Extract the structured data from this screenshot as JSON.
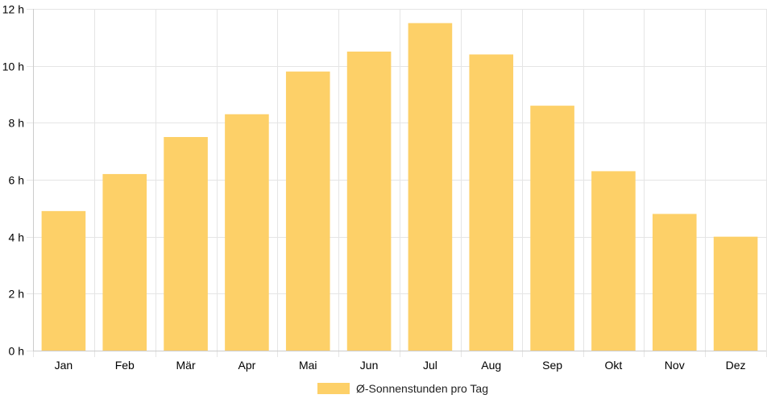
{
  "chart_data": {
    "type": "bar",
    "categories": [
      "Jan",
      "Feb",
      "Mär",
      "Apr",
      "Mai",
      "Jun",
      "Jul",
      "Aug",
      "Sep",
      "Okt",
      "Nov",
      "Dez"
    ],
    "series": [
      {
        "name": "Ø-Sonnenstunden pro Tag",
        "values": [
          4.9,
          6.2,
          7.5,
          8.3,
          9.8,
          10.5,
          11.5,
          10.4,
          8.6,
          6.3,
          4.8,
          4.0
        ]
      }
    ],
    "y_ticks": [
      "0 h",
      "2 h",
      "4 h",
      "6 h",
      "8 h",
      "10 h",
      "12 h"
    ],
    "ylim": [
      0,
      12
    ],
    "y_step": 2,
    "grid": true,
    "legend_position": "bottom",
    "colors": {
      "bar": "#fdd068",
      "grid": "#e5e5e5",
      "axis": "#cccccc"
    }
  }
}
